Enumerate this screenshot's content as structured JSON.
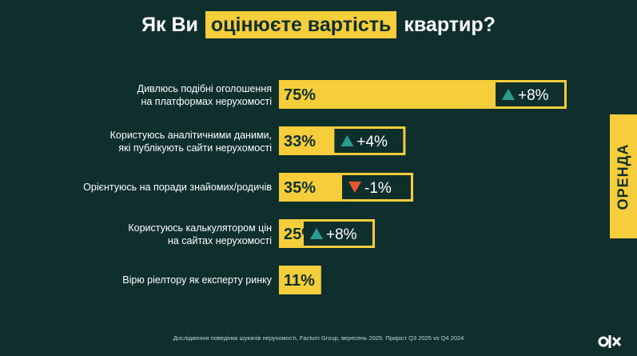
{
  "title": {
    "before": "Як Ви",
    "highlight": "оцінюєте вартість",
    "after": "квартир?"
  },
  "side_tab": "ОРЕНДА",
  "footnote": "Дослідження поведінки шукачів нерухомості, Factum Group, вересень 2025. Приріст Q3 2025 vs Q4 2024",
  "logo": "O|X",
  "colors": {
    "background": "#0f2f2d",
    "bar": "#f6cd3a",
    "up": "#2a9d8f",
    "down": "#e8572b",
    "text": "#ffffff"
  },
  "chart_data": {
    "type": "bar",
    "orientation": "horizontal",
    "unit": "%",
    "xlim": [
      0,
      100
    ],
    "categories": [
      "Дивлюсь подібні оголошення на платформах нерухомості",
      "Користуюсь аналітичними даними, які публікують сайти нерухомості",
      "Орієнтуюсь на поради знайомих/родичів",
      "Користуюсь калькулятором цін на сайтах нерухомості",
      "Вірю ріелтору як експерту ринку"
    ],
    "label_lines": [
      [
        "Дивлюсь подібні оголошення",
        "на платформах нерухомості"
      ],
      [
        "Користуюсь аналітичними даними,",
        "які публікують сайти нерухомості"
      ],
      [
        "Орієнтуюсь на поради знайомих/родичів"
      ],
      [
        "Користуюсь калькулятором цін",
        "на сайтах нерухомості"
      ],
      [
        "Вірю ріелтору як експерту ринку"
      ]
    ],
    "values": [
      75,
      33,
      35,
      25,
      11
    ],
    "value_labels": [
      "75%",
      "33%",
      "35%",
      "25%",
      "11%"
    ],
    "change": [
      8,
      4,
      -1,
      8,
      null
    ],
    "change_labels": [
      "+8%",
      "+4%",
      "-1%",
      "+8%",
      ""
    ]
  }
}
